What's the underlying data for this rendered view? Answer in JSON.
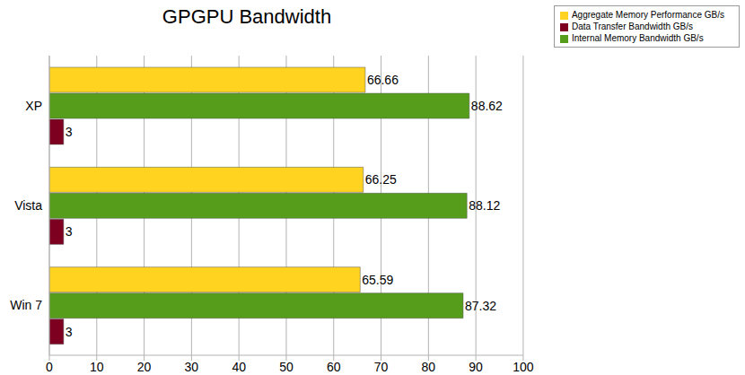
{
  "chart_data": {
    "type": "bar",
    "title": "GPGPU Bandwidth",
    "orientation": "horizontal",
    "categories": [
      "XP",
      "Vista",
      "Win 7"
    ],
    "series": [
      {
        "name": "Aggregate Memory Performance GB/s",
        "color": "#ffd320",
        "values": [
          66.66,
          66.25,
          65.59
        ]
      },
      {
        "name": "Internal Memory Bandwidth GB/s",
        "color": "#579d1c",
        "values": [
          88.62,
          88.12,
          87.32
        ]
      },
      {
        "name": "Data Transfer Bandwidth GB/s",
        "color": "#7e0021",
        "values": [
          3,
          3,
          3
        ]
      }
    ],
    "xlim": [
      0,
      100
    ],
    "xticks": [
      0,
      10,
      20,
      30,
      40,
      50,
      60,
      70,
      80,
      90,
      100
    ],
    "grid": true,
    "legend": "top-right",
    "data_labels": true
  }
}
